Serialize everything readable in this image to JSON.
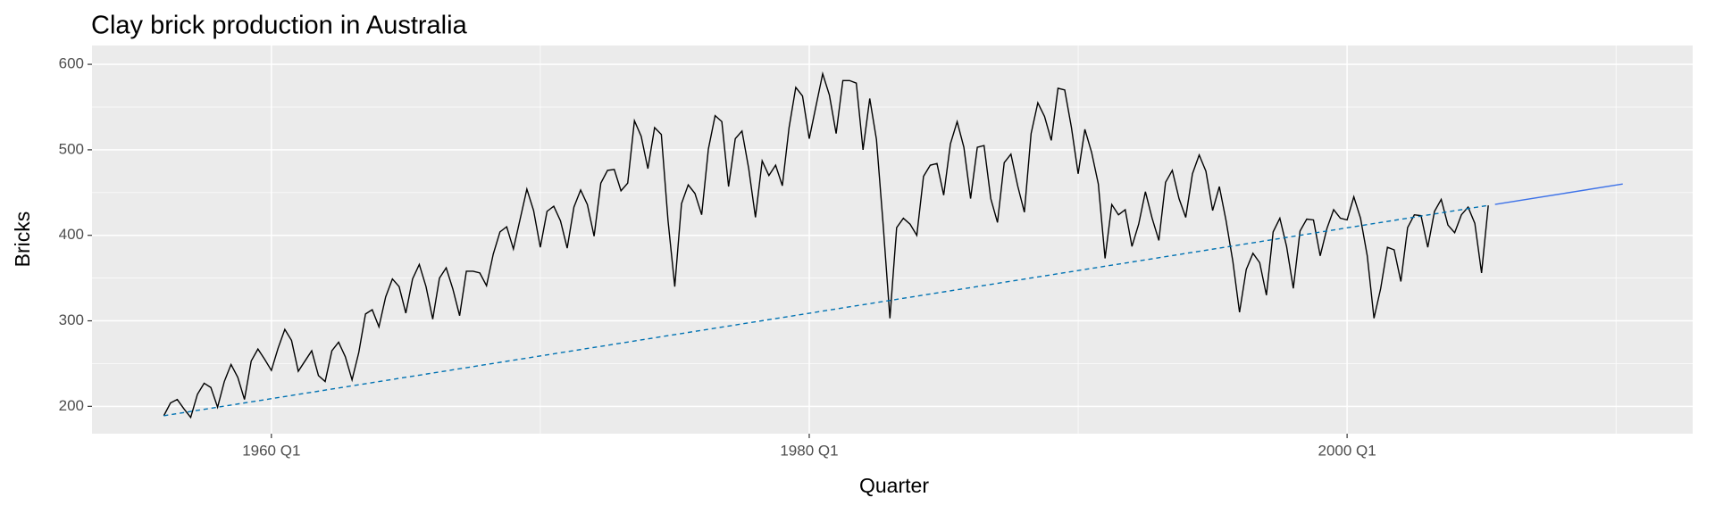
{
  "chart_data": {
    "type": "line",
    "title": "Clay brick production in Australia",
    "x_label": "Quarter",
    "y_label": "Bricks",
    "xlim": [
      1953.33,
      2012.85
    ],
    "ylim": [
      168,
      622
    ],
    "xticks": [
      {
        "value": 1960,
        "label": "1960 Q1"
      },
      {
        "value": 1980,
        "label": "1980 Q1"
      },
      {
        "value": 2000,
        "label": "2000 Q1"
      }
    ],
    "yticks": [
      200,
      300,
      400,
      500,
      600
    ],
    "grid": true,
    "series": [
      {
        "color": "#000000",
        "dash": false,
        "x": [
          1956,
          1956.25,
          1956.5,
          1956.75,
          1957,
          1957.25,
          1957.5,
          1957.75,
          1958,
          1958.25,
          1958.5,
          1958.75,
          1959,
          1959.25,
          1959.5,
          1959.75,
          1960,
          1960.25,
          1960.5,
          1960.75,
          1961,
          1961.25,
          1961.5,
          1961.75,
          1962,
          1962.25,
          1962.5,
          1962.75,
          1963,
          1963.25,
          1963.5,
          1963.75,
          1964,
          1964.25,
          1964.5,
          1964.75,
          1965,
          1965.25,
          1965.5,
          1965.75,
          1966,
          1966.25,
          1966.5,
          1966.75,
          1967,
          1967.25,
          1967.5,
          1967.75,
          1968,
          1968.25,
          1968.5,
          1968.75,
          1969,
          1969.25,
          1969.5,
          1969.75,
          1970,
          1970.25,
          1970.5,
          1970.75,
          1971,
          1971.25,
          1971.5,
          1971.75,
          1972,
          1972.25,
          1972.5,
          1972.75,
          1973,
          1973.25,
          1973.5,
          1973.75,
          1974,
          1974.25,
          1974.5,
          1974.75,
          1975,
          1975.25,
          1975.5,
          1975.75,
          1976,
          1976.25,
          1976.5,
          1976.75,
          1977,
          1977.25,
          1977.5,
          1977.75,
          1978,
          1978.25,
          1978.5,
          1978.75,
          1979,
          1979.25,
          1979.5,
          1979.75,
          1980,
          1980.25,
          1980.5,
          1980.75,
          1981,
          1981.25,
          1981.5,
          1981.75,
          1982,
          1982.25,
          1982.5,
          1982.75,
          1983,
          1983.25,
          1983.5,
          1983.75,
          1984,
          1984.25,
          1984.5,
          1984.75,
          1985,
          1985.25,
          1985.5,
          1985.75,
          1986,
          1986.25,
          1986.5,
          1986.75,
          1987,
          1987.25,
          1987.5,
          1987.75,
          1988,
          1988.25,
          1988.5,
          1988.75,
          1989,
          1989.25,
          1989.5,
          1989.75,
          1990,
          1990.25,
          1990.5,
          1990.75,
          1991,
          1991.25,
          1991.5,
          1991.75,
          1992,
          1992.25,
          1992.5,
          1992.75,
          1993,
          1993.25,
          1993.5,
          1993.75,
          1994,
          1994.25,
          1994.5,
          1994.75,
          1995,
          1995.25,
          1995.5,
          1995.75,
          1996,
          1996.25,
          1996.5,
          1996.75,
          1997,
          1997.25,
          1997.5,
          1997.75,
          1998,
          1998.25,
          1998.5,
          1998.75,
          1999,
          1999.25,
          1999.5,
          1999.75,
          2000,
          2000.25,
          2000.5,
          2000.75,
          2001,
          2001.25,
          2001.5,
          2001.75,
          2002,
          2002.25,
          2002.5,
          2002.75,
          2003,
          2003.25,
          2003.5,
          2003.75,
          2004,
          2004.25,
          2004.5,
          2004.75,
          2005,
          2005.25
        ],
        "values": [
          189,
          204,
          208,
          197,
          187,
          214,
          227,
          222,
          199,
          229,
          249,
          234,
          208,
          253,
          267,
          255,
          242,
          268,
          290,
          277,
          241,
          253,
          265,
          236,
          229,
          265,
          275,
          258,
          231,
          263,
          308,
          313,
          293,
          328,
          349,
          340,
          309,
          349,
          366,
          340,
          302,
          350,
          362,
          337,
          306,
          358,
          358,
          356,
          341,
          378,
          404,
          410,
          384,
          419,
          454,
          429,
          386,
          428,
          434,
          417,
          385,
          433,
          453,
          436,
          399,
          461,
          476,
          477,
          452,
          461,
          534,
          516,
          478,
          526,
          518,
          417,
          340,
          437,
          459,
          449,
          424,
          501,
          540,
          533,
          457,
          513,
          522,
          478,
          421,
          487,
          470,
          482,
          458,
          526,
          573,
          563,
          513,
          551,
          589,
          564,
          519,
          581,
          581,
          578,
          500,
          560,
          512,
          412,
          303,
          409,
          420,
          413,
          400,
          469,
          482,
          484,
          447,
          507,
          533,
          503,
          443,
          503,
          505,
          443,
          415,
          485,
          495,
          458,
          427,
          519,
          555,
          539,
          511,
          572,
          570,
          526,
          472,
          524,
          497,
          460,
          373,
          436,
          424,
          430,
          387,
          413,
          451,
          420,
          394,
          462,
          476,
          443,
          421,
          472,
          494,
          475,
          429,
          457,
          417,
          370,
          310,
          360,
          379,
          368,
          330,
          404,
          420,
          387,
          338,
          405,
          419,
          418,
          376,
          408,
          430,
          420,
          418,
          445,
          420,
          376,
          303,
          338,
          386,
          383,
          346,
          409,
          424,
          423,
          386,
          428,
          442,
          412,
          403,
          424,
          433,
          414,
          356,
          435
        ]
      },
      {
        "color": "#0072b2",
        "dash": true,
        "x": [
          1956,
          2005.25
        ],
        "values": [
          189,
          435
        ]
      },
      {
        "color": "#3d72e8",
        "dash": false,
        "x": [
          2005.5,
          2010.25
        ],
        "values": [
          436.2,
          460
        ]
      }
    ]
  }
}
